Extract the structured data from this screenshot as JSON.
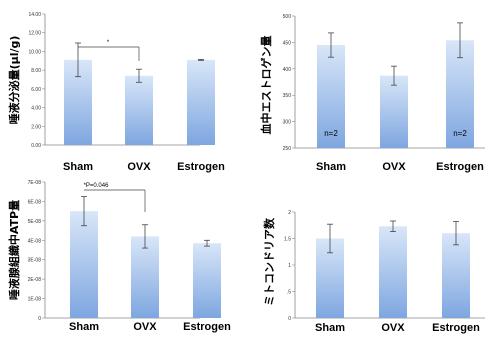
{
  "chart_data": [
    {
      "type": "bar",
      "ylabel": "唾液分泌量(μl/g)",
      "categories": [
        "Sham",
        "OVX",
        "Estrogen"
      ],
      "values": [
        9.1,
        7.4,
        9.1
      ],
      "errors": [
        1.8,
        0.7,
        0.05
      ],
      "ylim": [
        0,
        14
      ],
      "yticks": [
        "0.00",
        "2.00",
        "4.00",
        "6.00",
        "8.00",
        "10.00",
        "12.00",
        "14.00"
      ],
      "annotations": [
        {
          "text": "*",
          "between": [
            "Sham",
            "OVX"
          ]
        }
      ]
    },
    {
      "type": "bar",
      "ylabel": "血中エストロゲン量",
      "categories": [
        "Sham",
        "OVX",
        "Estrogen"
      ],
      "values": [
        445,
        387,
        454
      ],
      "errors": [
        23,
        18,
        33
      ],
      "ylim": [
        250,
        500
      ],
      "yticks": [
        "250",
        "300",
        "350",
        "400",
        "450",
        "500"
      ],
      "bar_labels": [
        "n=2",
        "",
        "n=2"
      ]
    },
    {
      "type": "bar",
      "ylabel": "唾液腺組織中ATP量",
      "categories": [
        "Sham",
        "OVX",
        "Estrogen"
      ],
      "values": [
        5.5e-08,
        4.2e-08,
        3.85e-08
      ],
      "errors": [
        7.5e-09,
        6e-09,
        1.5e-09
      ],
      "ylim": [
        0,
        7e-08
      ],
      "yticks": [
        "0",
        "1E-08",
        "2E-08",
        "3E-08",
        "4E-08",
        "5E-08",
        "6E-08",
        "7E-08"
      ],
      "annotations": [
        {
          "text": "*P=0.046",
          "between": [
            "Sham",
            "OVX"
          ]
        }
      ]
    },
    {
      "type": "bar",
      "ylabel": "ミトコンドリア数",
      "categories": [
        "Sham",
        "OVX",
        "Estrogen"
      ],
      "values": [
        1.5,
        1.73,
        1.6
      ],
      "errors": [
        0.27,
        0.1,
        0.22
      ],
      "ylim": [
        0,
        2
      ],
      "yticks": [
        "0",
        ".5",
        "1",
        "1.5",
        "2"
      ]
    }
  ]
}
